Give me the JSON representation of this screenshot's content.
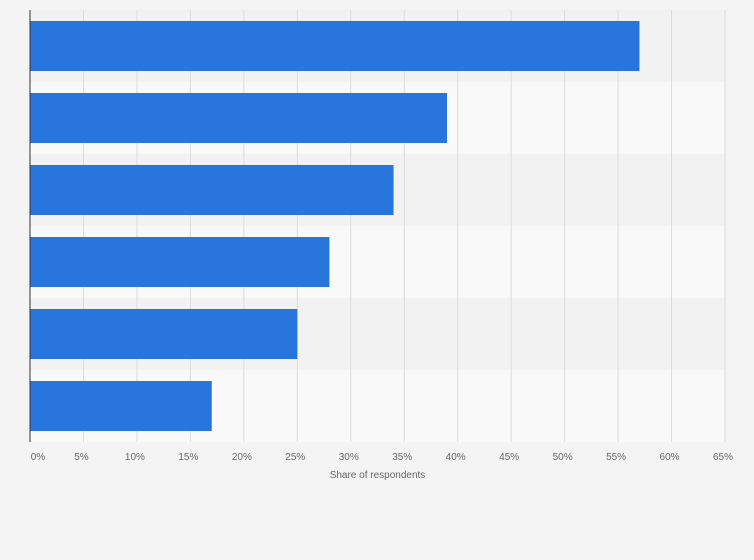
{
  "chart_data": {
    "type": "bar",
    "orientation": "horizontal",
    "categories": [
      "",
      "",
      "",
      "",
      "",
      ""
    ],
    "values": [
      57,
      39,
      34,
      28,
      25,
      17
    ],
    "xlabel": "Share of respondents",
    "ylabel": "",
    "xlim": [
      0,
      65
    ],
    "xticks": [
      0,
      5,
      10,
      15,
      20,
      25,
      30,
      35,
      40,
      45,
      50,
      55,
      60,
      65
    ],
    "xtick_labels": [
      "0%",
      "5%",
      "10%",
      "15%",
      "20%",
      "25%",
      "30%",
      "35%",
      "40%",
      "45%",
      "50%",
      "55%",
      "60%",
      "65%"
    ],
    "grid": true,
    "bar_color": "#2876dd"
  }
}
